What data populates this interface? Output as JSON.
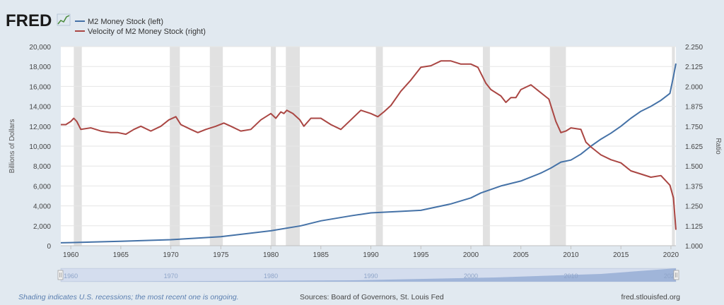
{
  "logo": {
    "text": "FRED"
  },
  "legend": [
    {
      "label": "M2 Money Stock (left)",
      "color": "#4572a7"
    },
    {
      "label": "Velocity of M2 Money Stock (right)",
      "color": "#aa4643"
    }
  ],
  "colors": {
    "left_series": "#4572a7",
    "right_series": "#aa4643",
    "recession": "#e1e1e1",
    "background": "#e1e9f0"
  },
  "footer": {
    "note": "Shading indicates U.S. recessions; the most recent one is ongoing.",
    "source": "Sources: Board of Governors, St. Louis Fed",
    "site": "fred.stlouisfed.org"
  },
  "navigator": {
    "ticks": [
      "1960",
      "1970",
      "1980",
      "1990",
      "2000",
      "2010",
      "2020"
    ]
  },
  "chart_data": {
    "type": "line",
    "xlabel": "",
    "ylabel": "Billions of Dollars",
    "y2label": "Ratio",
    "xlim": [
      1959,
      2020.5
    ],
    "ylim": [
      0,
      20000
    ],
    "y2lim": [
      1.0,
      2.25
    ],
    "xticks": [
      "1960",
      "1965",
      "1970",
      "1975",
      "1980",
      "1985",
      "1990",
      "1995",
      "2000",
      "2005",
      "2010",
      "2015",
      "2020"
    ],
    "xtick_values": [
      1960,
      1965,
      1970,
      1975,
      1980,
      1985,
      1990,
      1995,
      2000,
      2005,
      2010,
      2015,
      2020
    ],
    "yticks": [
      "0",
      "2,000",
      "4,000",
      "6,000",
      "8,000",
      "10,000",
      "12,000",
      "14,000",
      "16,000",
      "18,000",
      "20,000"
    ],
    "y2ticks": [
      "1.000",
      "1.125",
      "1.250",
      "1.375",
      "1.500",
      "1.625",
      "1.750",
      "1.875",
      "2.000",
      "2.125",
      "2.250"
    ],
    "grid": true,
    "recessions": [
      [
        1960.3,
        1961.1
      ],
      [
        1969.9,
        1970.9
      ],
      [
        1973.9,
        1975.2
      ],
      [
        1980.0,
        1980.5
      ],
      [
        1981.5,
        1982.9
      ],
      [
        1990.5,
        1991.2
      ],
      [
        2001.2,
        2001.9
      ],
      [
        2007.9,
        2009.5
      ],
      [
        2020.1,
        2020.4
      ]
    ],
    "series": [
      {
        "name": "M2 Money Stock (left)",
        "axis": "left",
        "x": [
          1959,
          1960,
          1965,
          1970,
          1975,
          1980,
          1983,
          1985,
          1988,
          1990,
          1993,
          1995,
          1998,
          2000,
          2001,
          2003,
          2005,
          2007,
          2008,
          2009,
          2010,
          2011,
          2012,
          2013,
          2014,
          2015,
          2016,
          2017,
          2018,
          2019,
          2019.9,
          2020.25,
          2020.5
        ],
        "values": [
          290,
          310,
          450,
          600,
          900,
          1500,
          2000,
          2500,
          3000,
          3300,
          3450,
          3550,
          4200,
          4800,
          5300,
          6000,
          6500,
          7300,
          7800,
          8400,
          8600,
          9200,
          10000,
          10700,
          11300,
          12000,
          12800,
          13500,
          14000,
          14600,
          15300,
          17000,
          18300
        ]
      },
      {
        "name": "Velocity of M2 Money Stock (right)",
        "axis": "right",
        "x": [
          1959,
          1959.5,
          1960,
          1960.3,
          1960.6,
          1961,
          1962,
          1963,
          1964,
          1964.7,
          1965.5,
          1966.3,
          1967,
          1968,
          1969,
          1969.8,
          1970.5,
          1971,
          1972,
          1972.7,
          1973.5,
          1974.5,
          1975.3,
          1976,
          1977,
          1978,
          1979,
          1980,
          1980.5,
          1981,
          1981.3,
          1981.6,
          1982.2,
          1982.9,
          1983.3,
          1984,
          1985,
          1986,
          1987,
          1988,
          1989,
          1990,
          1990.7,
          1991.3,
          1992,
          1993,
          1994,
          1995,
          1996,
          1997,
          1998,
          1999,
          2000,
          2000.7,
          2001.5,
          2002,
          2003,
          2003.5,
          2004,
          2004.5,
          2005,
          2006,
          2007,
          2007.8,
          2008.5,
          2009,
          2009.5,
          2010,
          2011,
          2011.5,
          2012,
          2013,
          2014,
          2015,
          2016,
          2017,
          2018,
          2019,
          2019.9,
          2020.25,
          2020.5
        ],
        "values": [
          1.76,
          1.76,
          1.78,
          1.8,
          1.78,
          1.73,
          1.74,
          1.72,
          1.71,
          1.71,
          1.7,
          1.73,
          1.75,
          1.72,
          1.75,
          1.79,
          1.81,
          1.76,
          1.73,
          1.71,
          1.73,
          1.75,
          1.77,
          1.75,
          1.72,
          1.73,
          1.79,
          1.83,
          1.8,
          1.84,
          1.83,
          1.85,
          1.83,
          1.79,
          1.75,
          1.8,
          1.8,
          1.76,
          1.73,
          1.79,
          1.85,
          1.83,
          1.81,
          1.84,
          1.88,
          1.97,
          2.04,
          2.12,
          2.13,
          2.16,
          2.16,
          2.14,
          2.14,
          2.12,
          2.02,
          1.98,
          1.94,
          1.9,
          1.93,
          1.93,
          1.98,
          2.01,
          1.96,
          1.92,
          1.78,
          1.71,
          1.72,
          1.74,
          1.73,
          1.65,
          1.62,
          1.57,
          1.54,
          1.52,
          1.47,
          1.45,
          1.43,
          1.44,
          1.38,
          1.3,
          1.1
        ]
      }
    ]
  }
}
